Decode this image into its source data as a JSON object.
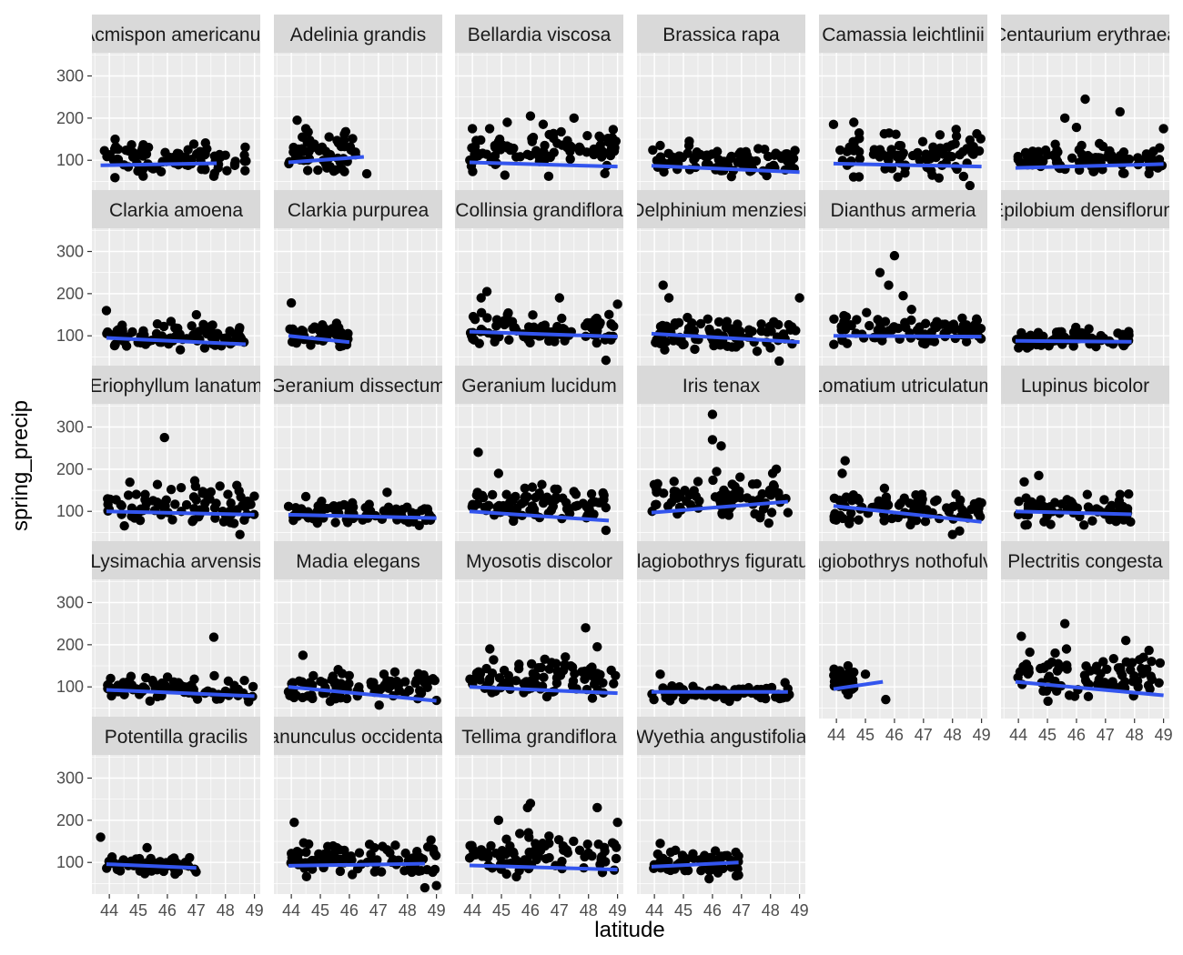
{
  "chart_data": {
    "type": "scatter",
    "layout": "faceted small multiples, 6 columns x 5 rows",
    "xlabel": "latitude",
    "ylabel": "spring_precip",
    "xlim": [
      43.4,
      49.2
    ],
    "ylim": [
      25,
      355
    ],
    "x_ticks": [
      44,
      45,
      46,
      47,
      48,
      49
    ],
    "x_tick_labels": [
      "44",
      "45",
      "46",
      "47",
      "48",
      "49"
    ],
    "y_ticks": [
      100,
      200,
      300
    ],
    "y_tick_labels": [
      "100",
      "200",
      "300"
    ],
    "grid": true,
    "colors": {
      "panel_background": "#ebebeb",
      "grid_line": "#ffffff",
      "strip_background": "#d9d9d9",
      "point": "#000000",
      "trend_line": "#3355ee"
    },
    "facets": [
      {
        "title": "Acmispon americanus",
        "x_range": [
          43.7,
          48.8
        ],
        "y_range": [
          45,
          155
        ],
        "trend": [
          [
            43.7,
            88
          ],
          [
            47.7,
            93
          ]
        ],
        "highlights": [
          [
            44.2,
            150
          ],
          [
            48.0,
            112
          ],
          [
            47.3,
            78
          ]
        ]
      },
      {
        "title": "Adelinia grandis",
        "x_range": [
          43.9,
          46.3
        ],
        "y_range": [
          50,
          195
        ],
        "trend": [
          [
            43.9,
            95
          ],
          [
            46.5,
            108
          ]
        ],
        "highlights": [
          [
            44.2,
            195
          ],
          [
            44.5,
            175
          ],
          [
            46.6,
            68
          ]
        ]
      },
      {
        "title": "Bellardia viscosa",
        "x_range": [
          43.9,
          49.0
        ],
        "y_range": [
          50,
          200
        ],
        "trend": [
          [
            43.9,
            95
          ],
          [
            49.0,
            85
          ]
        ],
        "highlights": [
          [
            45.2,
            190
          ],
          [
            46.0,
            205
          ],
          [
            47.5,
            200
          ],
          [
            44.0,
            175
          ]
        ]
      },
      {
        "title": "Brassica rapa",
        "x_range": [
          43.9,
          49.0
        ],
        "y_range": [
          55,
          145
        ],
        "trend": [
          [
            43.9,
            87
          ],
          [
            49.0,
            72
          ]
        ],
        "highlights": [
          [
            45.2,
            145
          ],
          [
            44.2,
            135
          ]
        ]
      },
      {
        "title": "Camassia leichtlinii",
        "x_range": [
          43.9,
          49.0
        ],
        "y_range": [
          40,
          190
        ],
        "trend": [
          [
            43.9,
            92
          ],
          [
            49.0,
            85
          ]
        ],
        "highlights": [
          [
            43.9,
            185
          ],
          [
            44.6,
            190
          ],
          [
            48.6,
            40
          ]
        ]
      },
      {
        "title": "Centaurium erythraea",
        "x_range": [
          43.9,
          49.0
        ],
        "y_range": [
          55,
          150
        ],
        "trend": [
          [
            43.9,
            82
          ],
          [
            49.0,
            91
          ]
        ],
        "highlights": [
          [
            46.3,
            245
          ],
          [
            45.6,
            200
          ],
          [
            46.0,
            178
          ],
          [
            49.0,
            175
          ],
          [
            47.5,
            215
          ]
        ]
      },
      {
        "title": "Clarkia amoena",
        "x_range": [
          43.9,
          48.7
        ],
        "y_range": [
          55,
          140
        ],
        "trend": [
          [
            43.9,
            95
          ],
          [
            48.7,
            80
          ]
        ],
        "highlights": [
          [
            43.9,
            160
          ],
          [
            47.0,
            150
          ]
        ]
      },
      {
        "title": "Clarkia purpurea",
        "x_range": [
          43.9,
          46.0
        ],
        "y_range": [
          55,
          140
        ],
        "trend": [
          [
            43.9,
            100
          ],
          [
            46.0,
            85
          ]
        ],
        "highlights": [
          [
            44.0,
            178
          ]
        ]
      },
      {
        "title": "Collinsia grandiflora",
        "x_range": [
          43.9,
          49.0
        ],
        "y_range": [
          50,
          170
        ],
        "trend": [
          [
            43.9,
            110
          ],
          [
            49.0,
            98
          ]
        ],
        "highlights": [
          [
            44.5,
            205
          ],
          [
            44.3,
            190
          ],
          [
            47.0,
            190
          ],
          [
            48.6,
            42
          ],
          [
            49.0,
            175
          ]
        ]
      },
      {
        "title": "Delphinium menziesii",
        "x_range": [
          43.9,
          49.0
        ],
        "y_range": [
          45,
          160
        ],
        "trend": [
          [
            43.9,
            105
          ],
          [
            49.0,
            85
          ]
        ],
        "highlights": [
          [
            44.3,
            220
          ],
          [
            44.5,
            190
          ],
          [
            49.0,
            190
          ],
          [
            48.3,
            40
          ],
          [
            46.8,
            95
          ]
        ]
      },
      {
        "title": "Dianthus armeria",
        "x_range": [
          43.9,
          49.0
        ],
        "y_range": [
          55,
          170
        ],
        "trend": [
          [
            43.9,
            100
          ],
          [
            49.0,
            98
          ]
        ],
        "highlights": [
          [
            46.0,
            290
          ],
          [
            45.8,
            220
          ],
          [
            46.3,
            195
          ],
          [
            45.5,
            250
          ]
        ]
      },
      {
        "title": "Epilobium densiflorum",
        "x_range": [
          43.9,
          47.9
        ],
        "y_range": [
          60,
          125
        ],
        "trend": [
          [
            43.9,
            88
          ],
          [
            47.9,
            86
          ]
        ],
        "highlights": [
          [
            47.8,
            110
          ]
        ]
      },
      {
        "title": "Eriophyllum lanatum",
        "x_range": [
          43.9,
          49.0
        ],
        "y_range": [
          45,
          190
        ],
        "trend": [
          [
            43.9,
            100
          ],
          [
            49.0,
            92
          ]
        ],
        "highlights": [
          [
            45.9,
            275
          ],
          [
            48.5,
            45
          ]
        ]
      },
      {
        "title": "Geranium dissectum",
        "x_range": [
          43.9,
          49.0
        ],
        "y_range": [
          55,
          135
        ],
        "trend": [
          [
            43.9,
            92
          ],
          [
            49.0,
            84
          ]
        ],
        "highlights": [
          [
            44.5,
            135
          ],
          [
            47.3,
            145
          ]
        ]
      },
      {
        "title": "Geranium lucidum",
        "x_range": [
          43.9,
          48.7
        ],
        "y_range": [
          55,
          180
        ],
        "trend": [
          [
            43.9,
            100
          ],
          [
            48.7,
            78
          ]
        ],
        "highlights": [
          [
            44.2,
            240
          ],
          [
            44.9,
            190
          ],
          [
            48.6,
            55
          ]
        ]
      },
      {
        "title": "Iris tenax",
        "x_range": [
          43.9,
          48.6
        ],
        "y_range": [
          55,
          210
        ],
        "trend": [
          [
            43.9,
            97
          ],
          [
            48.6,
            123
          ]
        ],
        "highlights": [
          [
            46.0,
            330
          ],
          [
            46.0,
            270
          ],
          [
            46.3,
            255
          ],
          [
            48.2,
            200
          ],
          [
            48.6,
            97
          ]
        ]
      },
      {
        "title": "Lomatium utriculatum",
        "x_range": [
          43.9,
          49.0
        ],
        "y_range": [
          45,
          170
        ],
        "trend": [
          [
            43.9,
            113
          ],
          [
            49.0,
            75
          ]
        ],
        "highlights": [
          [
            44.3,
            220
          ],
          [
            44.2,
            190
          ],
          [
            49.0,
            120
          ],
          [
            48.0,
            45
          ]
        ]
      },
      {
        "title": "Lupinus bicolor",
        "x_range": [
          43.9,
          47.9
        ],
        "y_range": [
          55,
          150
        ],
        "trend": [
          [
            43.9,
            100
          ],
          [
            47.9,
            93
          ]
        ],
        "highlights": [
          [
            44.7,
            185
          ],
          [
            44.2,
            170
          ],
          [
            47.5,
            140
          ]
        ]
      },
      {
        "title": "Lysimachia arvensis",
        "x_range": [
          43.9,
          49.0
        ],
        "y_range": [
          55,
          135
        ],
        "trend": [
          [
            43.9,
            93
          ],
          [
            49.0,
            78
          ]
        ],
        "highlights": [
          [
            47.6,
            218
          ],
          [
            48.8,
            65
          ]
        ]
      },
      {
        "title": "Madia elegans",
        "x_range": [
          43.9,
          49.0
        ],
        "y_range": [
          50,
          155
        ],
        "trend": [
          [
            43.9,
            100
          ],
          [
            49.0,
            67
          ]
        ],
        "highlights": [
          [
            44.4,
            175
          ],
          [
            47.3,
            115
          ],
          [
            49.0,
            68
          ]
        ]
      },
      {
        "title": "Myosotis discolor",
        "x_range": [
          43.9,
          49.0
        ],
        "y_range": [
          55,
          190
        ],
        "trend": [
          [
            43.9,
            100
          ],
          [
            49.0,
            85
          ]
        ],
        "highlights": [
          [
            47.9,
            240
          ],
          [
            48.3,
            195
          ],
          [
            44.6,
            190
          ]
        ]
      },
      {
        "title": "Plagiobothrys figuratus",
        "x_range": [
          43.9,
          48.7
        ],
        "y_range": [
          60,
          110
        ],
        "trend": [
          [
            43.9,
            88
          ],
          [
            48.6,
            88
          ]
        ],
        "highlights": [
          [
            44.2,
            130
          ],
          [
            45.5,
            90
          ],
          [
            48.5,
            110
          ],
          [
            46.0,
            80
          ],
          [
            45.0,
            70
          ]
        ]
      },
      {
        "title": "Plagiobothrys nothofulvus",
        "x_range": [
          43.9,
          44.6
        ],
        "y_range": [
          70,
          150
        ],
        "trend": [
          [
            43.9,
            95
          ],
          [
            45.6,
            112
          ]
        ],
        "highlights": [
          [
            45.0,
            130
          ],
          [
            45.7,
            70
          ],
          [
            44.4,
            150
          ]
        ]
      },
      {
        "title": "Plectritis congesta",
        "x_range": [
          43.9,
          49.0
        ],
        "y_range": [
          50,
          200
        ],
        "trend": [
          [
            43.9,
            112
          ],
          [
            49.0,
            80
          ]
        ],
        "highlights": [
          [
            44.1,
            220
          ],
          [
            45.6,
            250
          ],
          [
            47.7,
            210
          ]
        ]
      },
      {
        "title": "Potentilla gracilis",
        "x_range": [
          43.9,
          47.0
        ],
        "y_range": [
          60,
          125
        ],
        "trend": [
          [
            43.9,
            96
          ],
          [
            47.0,
            87
          ]
        ],
        "highlights": [
          [
            43.7,
            160
          ],
          [
            45.3,
            135
          ]
        ]
      },
      {
        "title": "Ranunculus occidentalis",
        "x_range": [
          43.9,
          49.0
        ],
        "y_range": [
          55,
          165
        ],
        "trend": [
          [
            43.9,
            92
          ],
          [
            48.6,
            97
          ]
        ],
        "highlights": [
          [
            44.1,
            195
          ],
          [
            47.3,
            130
          ],
          [
            48.6,
            40
          ],
          [
            49.0,
            45
          ]
        ]
      },
      {
        "title": "Tellima grandiflora",
        "x_range": [
          43.9,
          49.0
        ],
        "y_range": [
          45,
          190
        ],
        "trend": [
          [
            43.9,
            93
          ],
          [
            49.0,
            83
          ]
        ],
        "highlights": [
          [
            46.0,
            240
          ],
          [
            45.9,
            230
          ],
          [
            48.3,
            230
          ],
          [
            49.0,
            195
          ],
          [
            44.9,
            200
          ]
        ]
      },
      {
        "title": "Wyethia angustifolia",
        "x_range": [
          43.9,
          46.9
        ],
        "y_range": [
          55,
          145
        ],
        "trend": [
          [
            43.9,
            90
          ],
          [
            46.9,
            100
          ]
        ],
        "highlights": [
          [
            44.2,
            145
          ],
          [
            46.9,
            115
          ],
          [
            46.9,
            70
          ]
        ]
      }
    ]
  }
}
